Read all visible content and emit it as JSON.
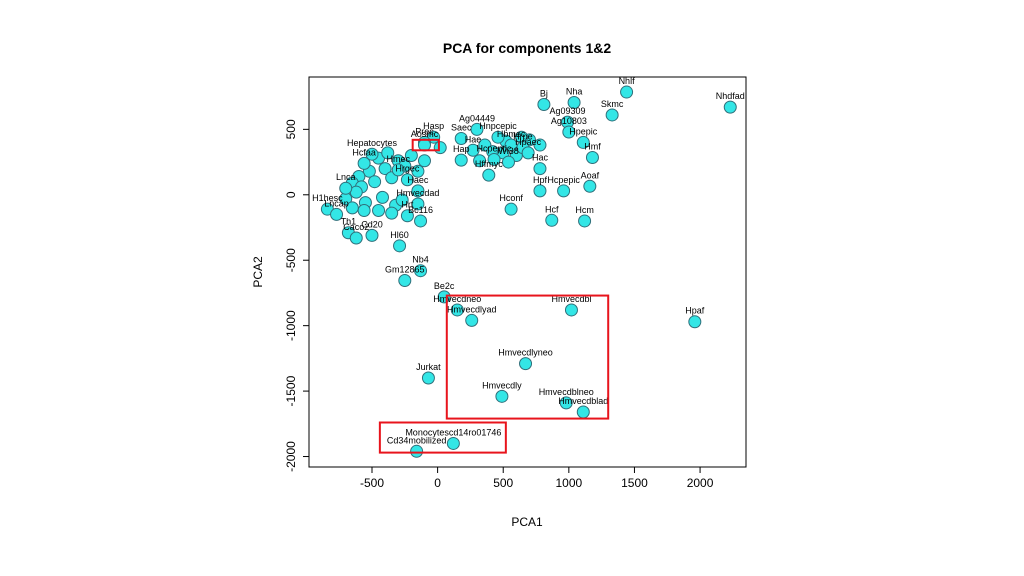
{
  "chart_data": {
    "type": "scatter",
    "title": "PCA for components 1&2",
    "xlabel": "PCA1",
    "ylabel": "PCA2",
    "xlim": [
      -980,
      2350
    ],
    "ylim": [
      -2080,
      900
    ],
    "xticks": [
      -500,
      0,
      500,
      1000,
      1500,
      2000
    ],
    "yticks": [
      -2000,
      -1500,
      -1000,
      -500,
      0,
      500
    ],
    "grid": false,
    "legend": "none",
    "marker_fill": "#33e6e6",
    "marker_stroke": "#2f6f7a",
    "highlight_color": "#e8141c",
    "highlight_boxes": [
      {
        "x": [
          -190,
          10
        ],
        "y": [
          340,
          420
        ]
      },
      {
        "x": [
          70,
          1300
        ],
        "y": [
          -1710,
          -770
        ]
      },
      {
        "x": [
          -440,
          520
        ],
        "y": [
          -1970,
          -1740
        ]
      }
    ],
    "points": [
      {
        "label": "Nhlf",
        "x": 1440,
        "y": 785
      },
      {
        "label": "Nhdfad",
        "x": 2230,
        "y": 670
      },
      {
        "label": "Nha",
        "x": 1040,
        "y": 705
      },
      {
        "label": "Bj",
        "x": 810,
        "y": 690
      },
      {
        "label": "Skmc",
        "x": 1330,
        "y": 610
      },
      {
        "label": "Ag09309",
        "x": 990,
        "y": 555
      },
      {
        "label": "Ag10803",
        "x": 1000,
        "y": 480
      },
      {
        "label": "Hpepic",
        "x": 1110,
        "y": 400
      },
      {
        "label": "Hmf",
        "x": 1180,
        "y": 285
      },
      {
        "label": "Aoaf",
        "x": 1160,
        "y": 65
      },
      {
        "label": "Hcm",
        "x": 1120,
        "y": -200
      },
      {
        "label": "Hcf",
        "x": 870,
        "y": -195
      },
      {
        "label": "Hcpepic",
        "x": 960,
        "y": 30
      },
      {
        "label": "Hpf",
        "x": 780,
        "y": 30
      },
      {
        "label": "Hac",
        "x": 780,
        "y": 200
      },
      {
        "label": "Hconf",
        "x": 560,
        "y": -110
      },
      {
        "label": "Ag04449",
        "x": 300,
        "y": 500
      },
      {
        "label": "Hnpcepic",
        "x": 460,
        "y": 440
      },
      {
        "label": "Saec",
        "x": 180,
        "y": 430
      },
      {
        "label": "Hbmec",
        "x": 560,
        "y": 380
      },
      {
        "label": "Hrpe",
        "x": 650,
        "y": 360
      },
      {
        "label": "Hpaec",
        "x": 690,
        "y": 320
      },
      {
        "label": "Hae",
        "x": 270,
        "y": 340
      },
      {
        "label": "Hap",
        "x": 180,
        "y": 265
      },
      {
        "label": "Hcpeptic",
        "x": 430,
        "y": 270
      },
      {
        "label": "Hffmyc",
        "x": 390,
        "y": 150
      },
      {
        "label": "Wi38",
        "x": 540,
        "y": 250
      },
      {
        "label": "Hasp",
        "x": -30,
        "y": 440
      },
      {
        "label": "Prec",
        "x": -100,
        "y": 400
      },
      {
        "label": "Aosmc",
        "x": -100,
        "y": 380
      },
      {
        "label": "Hepatocytes",
        "x": -500,
        "y": 310
      },
      {
        "label": "Hrgec",
        "x": -230,
        "y": 115
      },
      {
        "label": "Hmec",
        "x": -300,
        "y": 190
      },
      {
        "label": "Hcfaa",
        "x": -560,
        "y": 240
      },
      {
        "label": "Lnca",
        "x": -700,
        "y": 50
      },
      {
        "label": "H1hesc",
        "x": -840,
        "y": -110
      },
      {
        "label": "Lncap",
        "x": -770,
        "y": -150
      },
      {
        "label": "Haec",
        "x": -150,
        "y": 30
      },
      {
        "label": "Hmvecdad",
        "x": -150,
        "y": -70
      },
      {
        "label": "Bc116",
        "x": -130,
        "y": -200
      },
      {
        "label": "Hrt",
        "x": -230,
        "y": -160
      },
      {
        "label": "Th1",
        "x": -680,
        "y": -290
      },
      {
        "label": "Caco2",
        "x": -620,
        "y": -330
      },
      {
        "label": "Cd20",
        "x": -500,
        "y": -310
      },
      {
        "label": "Hl60",
        "x": -290,
        "y": -390
      },
      {
        "label": "Nb4",
        "x": -130,
        "y": -580
      },
      {
        "label": "Gm12865",
        "x": -250,
        "y": -655
      },
      {
        "label": "Be2c",
        "x": 50,
        "y": -780
      },
      {
        "label": "Hmvecdneo",
        "x": 150,
        "y": -880
      },
      {
        "label": "Hmvecdlyad",
        "x": 260,
        "y": -960
      },
      {
        "label": "Hmvecdbl",
        "x": 1020,
        "y": -880
      },
      {
        "label": "Hpaf",
        "x": 1960,
        "y": -970
      },
      {
        "label": "Hmvecdlyneo",
        "x": 670,
        "y": -1290
      },
      {
        "label": "Jurkat",
        "x": -70,
        "y": -1400
      },
      {
        "label": "Hmvecdly",
        "x": 490,
        "y": -1540
      },
      {
        "label": "Hmvecdblneo",
        "x": 980,
        "y": -1590
      },
      {
        "label": "Hmvecdblad",
        "x": 1110,
        "y": -1660
      },
      {
        "label": "Monocytescd14ro01746",
        "x": 120,
        "y": -1900
      },
      {
        "label": "Cd34mobilized",
        "x": -160,
        "y": -1960
      }
    ],
    "unlabeled_points": [
      {
        "x": -300,
        "y": 260
      },
      {
        "x": -400,
        "y": 200
      },
      {
        "x": -520,
        "y": 180
      },
      {
        "x": -600,
        "y": 140
      },
      {
        "x": -650,
        "y": 90
      },
      {
        "x": -580,
        "y": 60
      },
      {
        "x": -480,
        "y": 100
      },
      {
        "x": -350,
        "y": 130
      },
      {
        "x": -250,
        "y": 220
      },
      {
        "x": -450,
        "y": 280
      },
      {
        "x": -380,
        "y": 320
      },
      {
        "x": -200,
        "y": 300
      },
      {
        "x": -620,
        "y": 20
      },
      {
        "x": -700,
        "y": -30
      },
      {
        "x": -550,
        "y": -60
      },
      {
        "x": -420,
        "y": -20
      },
      {
        "x": -320,
        "y": -80
      },
      {
        "x": -450,
        "y": -120
      },
      {
        "x": -350,
        "y": -140
      },
      {
        "x": -270,
        "y": -40
      },
      {
        "x": -560,
        "y": -120
      },
      {
        "x": -650,
        "y": -100
      },
      {
        "x": -150,
        "y": 180
      },
      {
        "x": -100,
        "y": 260
      },
      {
        "x": 20,
        "y": 360
      },
      {
        "x": 360,
        "y": 380
      },
      {
        "x": 420,
        "y": 330
      },
      {
        "x": 500,
        "y": 320
      },
      {
        "x": 600,
        "y": 300
      },
      {
        "x": 700,
        "y": 420
      },
      {
        "x": 780,
        "y": 380
      },
      {
        "x": 320,
        "y": 260
      },
      {
        "x": 520,
        "y": 410
      },
      {
        "x": 640,
        "y": 440
      }
    ]
  }
}
